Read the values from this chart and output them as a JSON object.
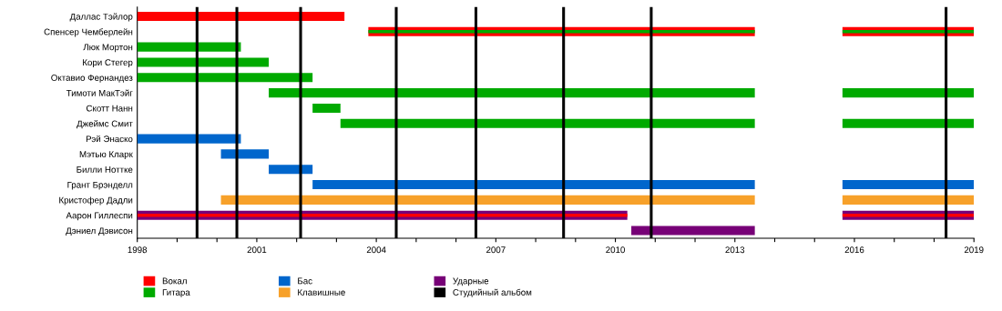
{
  "chart_data": {
    "type": "bar",
    "orientation": "horizontal",
    "categories": [
      "Даллас Тэйлор",
      "Спенсер Чемберлейн",
      "Люк Мортон",
      "Кори Стегер",
      "Октавио Фернандез",
      "Тимоти МакТэйг",
      "Скотт Нанн",
      "Джеймс Смит",
      "Рэй Энаско",
      "Мэтью Кларк",
      "Билли Ноттке",
      "Грант Брэнделл",
      "Кристофер Дадли",
      "Аарон Гиллеспи",
      "Дэниел Дэвисон"
    ],
    "series": [
      {
        "name": "Вокал",
        "color": "#ff0000",
        "base": [
          1998,
          2003.8,
          null,
          null,
          null,
          null,
          null,
          null,
          null,
          null,
          null,
          null,
          null,
          null,
          null
        ],
        "values": [
          5.2,
          9.7,
          null,
          null,
          null,
          null,
          null,
          null,
          null,
          null,
          null,
          null,
          null,
          null,
          null
        ]
      },
      {
        "color": "#ff0000",
        "base": [
          null,
          2015.7,
          null,
          null,
          null,
          null,
          null,
          null,
          null,
          null,
          null,
          null,
          null,
          null,
          null
        ],
        "values": [
          null,
          3.3,
          null,
          null,
          null,
          null,
          null,
          null,
          null,
          null,
          null,
          null,
          null,
          null,
          null
        ]
      },
      {
        "name": "Гитара",
        "color": "#00aa00",
        "base": [
          null,
          2003.8,
          1998,
          1998,
          1998,
          2001.3,
          2002.4,
          2003.1,
          null,
          null,
          null,
          null,
          null,
          null,
          null
        ],
        "values": [
          null,
          9.7,
          2.6,
          3.3,
          4.4,
          12.2,
          0.7,
          10.4,
          null,
          null,
          null,
          null,
          null,
          null,
          null
        ]
      },
      {
        "color": "#00aa00",
        "base": [
          null,
          2015.7,
          null,
          null,
          null,
          2015.7,
          null,
          2015.7,
          null,
          null,
          null,
          null,
          null,
          null,
          null
        ],
        "values": [
          null,
          3.3,
          null,
          null,
          null,
          3.3,
          null,
          3.3,
          null,
          null,
          null,
          null,
          null,
          null,
          null
        ]
      },
      {
        "name": "Бас",
        "color": "#0066cc",
        "base": [
          null,
          null,
          null,
          null,
          null,
          null,
          null,
          null,
          1998,
          2000.1,
          2001.3,
          2002.4,
          null,
          null,
          null
        ],
        "values": [
          null,
          null,
          null,
          null,
          null,
          null,
          null,
          null,
          2.6,
          1.2,
          1.1,
          11.1,
          null,
          null,
          null
        ]
      },
      {
        "color": "#0066cc",
        "base": [
          null,
          null,
          null,
          null,
          null,
          null,
          null,
          null,
          null,
          null,
          null,
          2015.7,
          null,
          null,
          null
        ],
        "values": [
          null,
          null,
          null,
          null,
          null,
          null,
          null,
          null,
          null,
          null,
          null,
          3.3,
          null,
          null,
          null
        ]
      },
      {
        "name": "Клавишные",
        "color": "#f7a12a",
        "base": [
          null,
          null,
          null,
          null,
          null,
          null,
          null,
          null,
          null,
          null,
          null,
          null,
          2000.1,
          null,
          null
        ],
        "values": [
          null,
          null,
          null,
          null,
          null,
          null,
          null,
          null,
          null,
          null,
          null,
          null,
          13.4,
          null,
          null
        ]
      },
      {
        "color": "#f7a12a",
        "base": [
          null,
          null,
          null,
          null,
          null,
          null,
          null,
          null,
          null,
          null,
          null,
          null,
          2015.7,
          null,
          null
        ],
        "values": [
          null,
          null,
          null,
          null,
          null,
          null,
          null,
          null,
          null,
          null,
          null,
          null,
          3.3,
          null,
          null
        ]
      },
      {
        "name": "Ударные",
        "color": "#770077",
        "base": [
          null,
          null,
          null,
          null,
          null,
          null,
          null,
          null,
          null,
          null,
          null,
          null,
          null,
          1998,
          2010.4
        ],
        "values": [
          null,
          null,
          null,
          null,
          null,
          null,
          null,
          null,
          null,
          null,
          null,
          null,
          null,
          12.3,
          3.1
        ]
      },
      {
        "color": "#770077",
        "base": [
          null,
          null,
          null,
          null,
          null,
          null,
          null,
          null,
          null,
          null,
          null,
          null,
          null,
          2015.7,
          null
        ],
        "values": [
          null,
          null,
          null,
          null,
          null,
          null,
          null,
          null,
          null,
          null,
          null,
          null,
          null,
          3.3,
          null
        ]
      },
      {
        "color": "#ff0000",
        "base": [
          null,
          null,
          null,
          null,
          null,
          null,
          null,
          null,
          null,
          null,
          null,
          null,
          null,
          1998,
          null
        ],
        "values": [
          null,
          null,
          null,
          null,
          null,
          null,
          null,
          null,
          null,
          null,
          null,
          null,
          null,
          12.3,
          null
        ]
      },
      {
        "color": "#ff0000",
        "base": [
          null,
          null,
          null,
          null,
          null,
          null,
          null,
          null,
          null,
          null,
          null,
          null,
          null,
          2015.7,
          null
        ],
        "values": [
          null,
          null,
          null,
          null,
          null,
          null,
          null,
          null,
          null,
          null,
          null,
          null,
          null,
          3.3,
          null
        ]
      }
    ],
    "ref_lines": [
      {
        "axis": "x",
        "value": 1999.5,
        "label": "Студийный альбом",
        "color": "#000000"
      },
      {
        "axis": "x",
        "value": 2000.5,
        "label": null,
        "color": "#000000"
      },
      {
        "axis": "x",
        "value": 2002.1,
        "label": null,
        "color": "#000000"
      },
      {
        "axis": "x",
        "value": 2004.5,
        "label": null,
        "color": "#000000"
      },
      {
        "axis": "x",
        "value": 2006.5,
        "label": null,
        "color": "#000000"
      },
      {
        "axis": "x",
        "value": 2008.7,
        "label": null,
        "color": "#000000"
      },
      {
        "axis": "x",
        "value": 2010.9,
        "label": null,
        "color": "#000000"
      },
      {
        "axis": "x",
        "value": 2018.3,
        "label": null,
        "color": "#000000"
      }
    ],
    "xlim": [
      1998,
      2019
    ],
    "xticks": [
      1998,
      {
        "value": 1999,
        "label": null
      },
      {
        "value": 2000,
        "label": null
      },
      2001,
      {
        "value": 2002,
        "label": null
      },
      {
        "value": 2003,
        "label": null
      },
      2004,
      {
        "value": 2005,
        "label": null
      },
      {
        "value": 2006,
        "label": null
      },
      2007,
      {
        "value": 2008,
        "label": null
      },
      {
        "value": 2009,
        "label": null
      },
      2010,
      {
        "value": 2011,
        "label": null
      },
      {
        "value": 2012,
        "label": null
      },
      2013,
      {
        "value": 2014,
        "label": null
      },
      {
        "value": 2015,
        "label": null
      },
      2016,
      {
        "value": 2017,
        "label": null
      },
      {
        "value": 2018,
        "label": null
      },
      2019
    ],
    "grid": false,
    "legend": "bottom"
  }
}
